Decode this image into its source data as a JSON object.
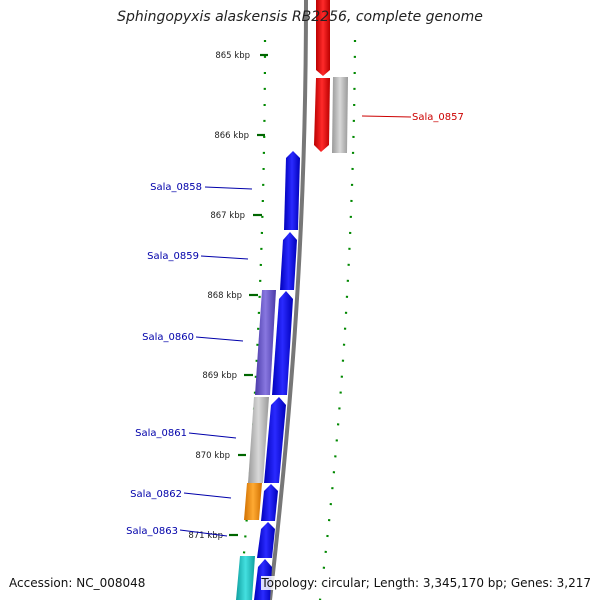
{
  "title": "Sphingopyxis alaskensis RB2256, complete genome",
  "accession": "Accession: NC_008048",
  "topology": "Topology: circular; Length: 3,345,170 bp; Genes: 3,217",
  "colors": {
    "forward_strand": "#0000ee",
    "reverse_strand": "#ee0000",
    "pseudo_gray": "#bbbbbb",
    "purple": "#6a55cc",
    "orange": "#ff9900",
    "teal": "#20c8c8",
    "tick_green": "#007700",
    "label_blue": "#0000aa",
    "label_red": "#cc0000"
  },
  "ticks": [
    {
      "label": "865 kbp"
    },
    {
      "label": "866 kbp"
    },
    {
      "label": "867 kbp"
    },
    {
      "label": "868 kbp"
    },
    {
      "label": "869 kbp"
    },
    {
      "label": "870 kbp"
    },
    {
      "label": "871 kbp"
    }
  ],
  "gene_labels": [
    {
      "name": "Sala_0857",
      "strand": "reverse"
    },
    {
      "name": "Sala_0858",
      "strand": "forward"
    },
    {
      "name": "Sala_0859",
      "strand": "forward"
    },
    {
      "name": "Sala_0860",
      "strand": "forward"
    },
    {
      "name": "Sala_0861",
      "strand": "forward"
    },
    {
      "name": "Sala_0862",
      "strand": "forward"
    },
    {
      "name": "Sala_0863",
      "strand": "forward"
    }
  ]
}
